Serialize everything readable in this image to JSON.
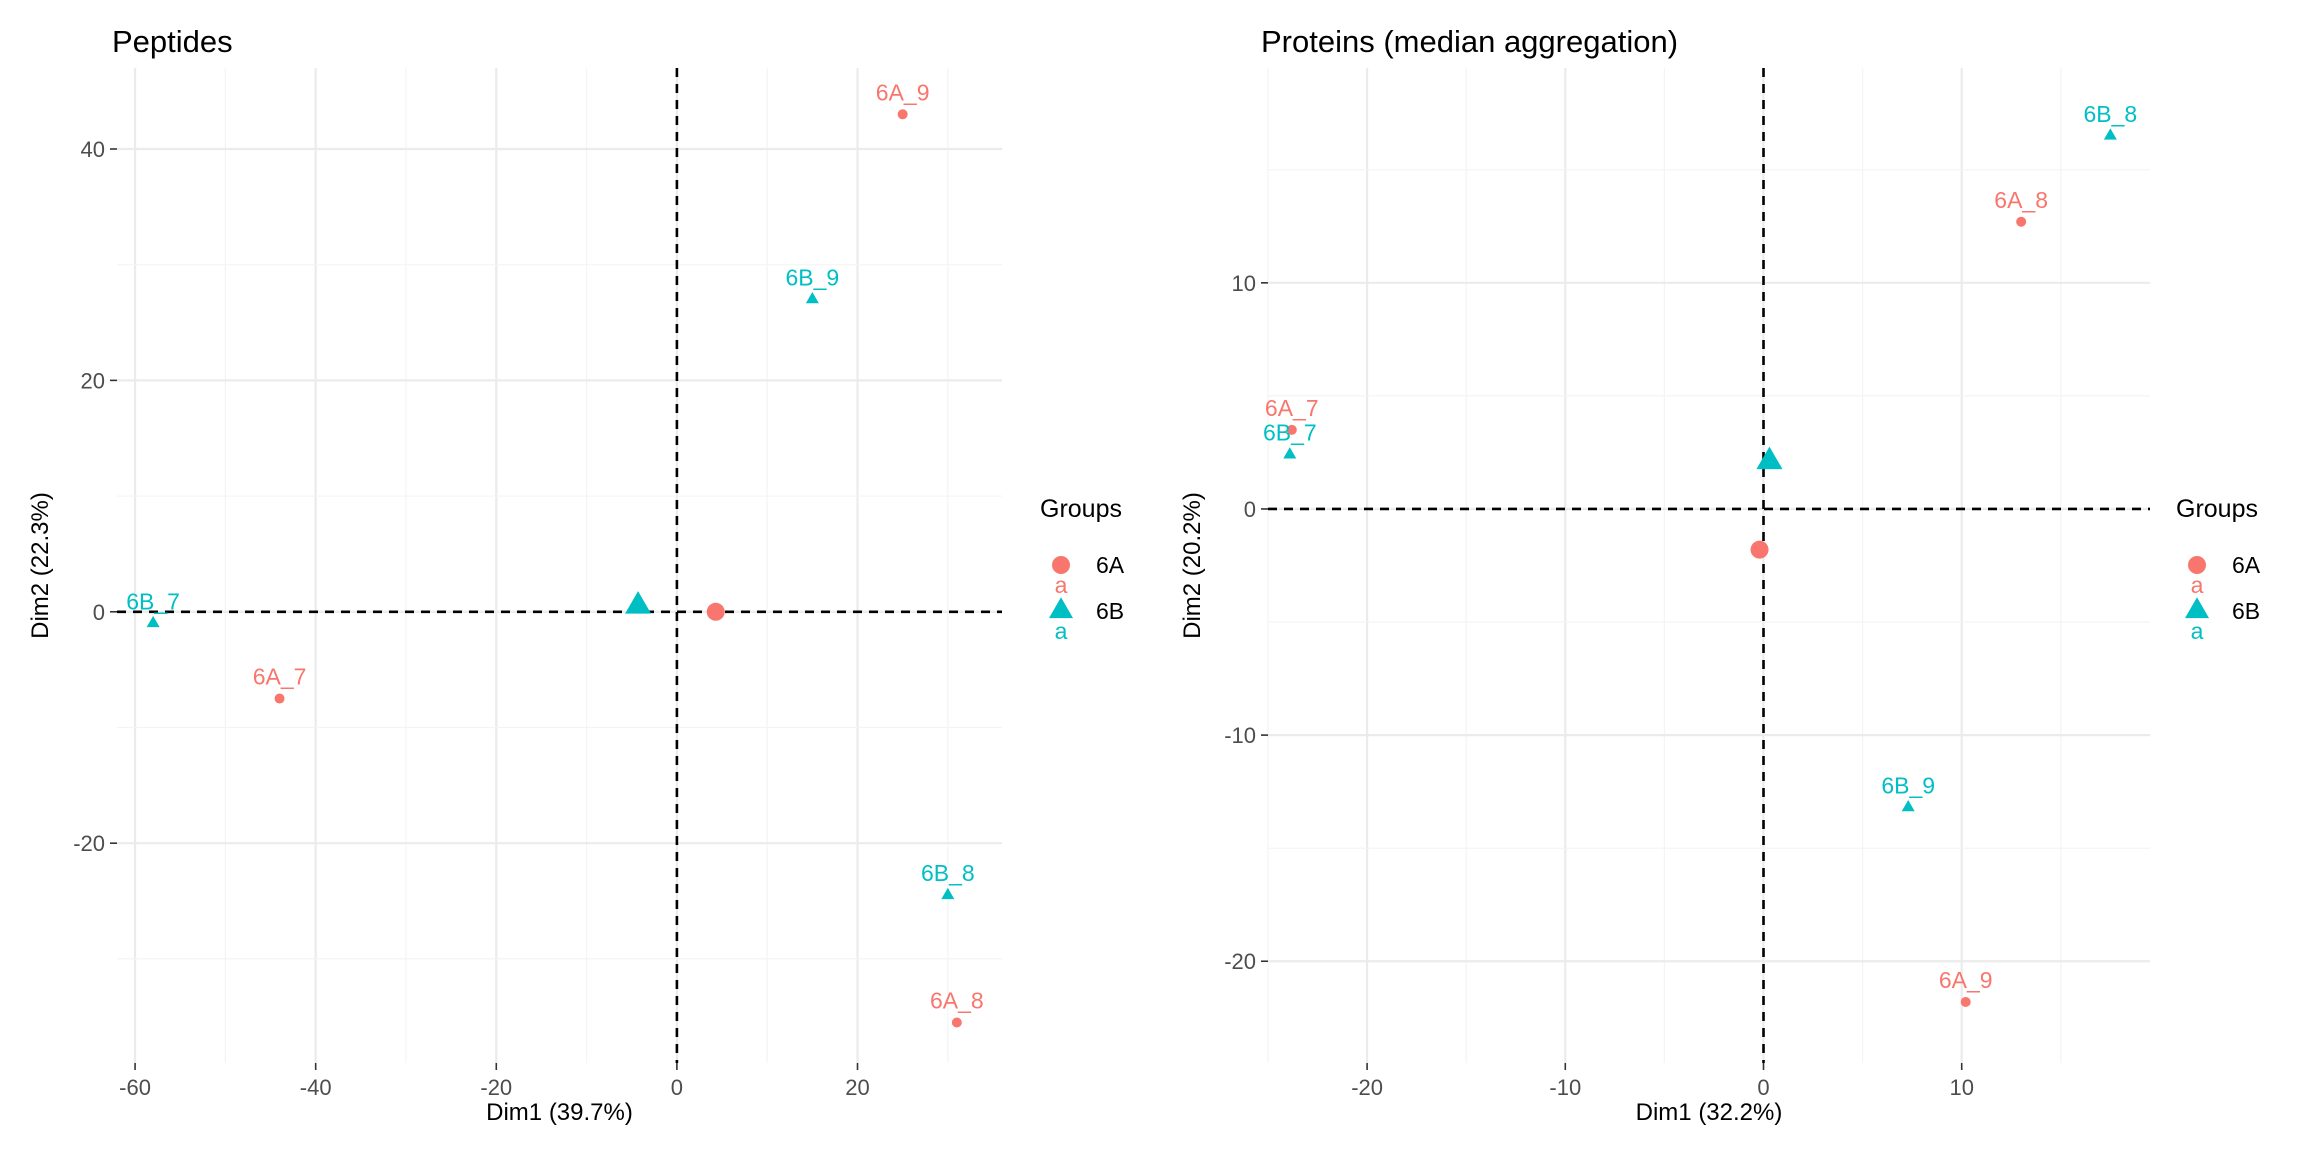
{
  "colors": {
    "6A": "#F8766D",
    "6B": "#00BFC4",
    "grid_major": "#ebebeb",
    "grid_minor": "#f4f4f4",
    "ref_line": "#000000"
  },
  "chart_data": [
    {
      "type": "scatter",
      "title": "Peptides",
      "xlabel": "Dim1 (39.7%)",
      "ylabel": "Dim2 (22.3%)",
      "xlim": [
        -62,
        36
      ],
      "ylim": [
        -39,
        47
      ],
      "xticks": [
        -60,
        -40,
        -20,
        0,
        20
      ],
      "yticks": [
        -20,
        0,
        20,
        40
      ],
      "reference_lines": {
        "x": 0,
        "y": 0,
        "style": "dashed"
      },
      "legend": {
        "title": "Groups",
        "placement": "right",
        "entries": [
          {
            "name": "6A",
            "shape": "circle",
            "glyph": "a"
          },
          {
            "name": "6B",
            "shape": "triangle",
            "glyph": "a"
          }
        ]
      },
      "points": [
        {
          "label": "6A_9",
          "group": "6A",
          "x": 25,
          "y": 43
        },
        {
          "label": "6B_9",
          "group": "6B",
          "x": 15,
          "y": 27
        },
        {
          "label": "6B_7",
          "group": "6B",
          "x": -58,
          "y": -1
        },
        {
          "label": "6A_7",
          "group": "6A",
          "x": -44,
          "y": -7.5
        },
        {
          "label": "6B_8",
          "group": "6B",
          "x": 30,
          "y": -24.5
        },
        {
          "label": "6A_8",
          "group": "6A",
          "x": 31,
          "y": -35.5
        }
      ],
      "centroids": [
        {
          "group": "6A",
          "x": 4.3,
          "y": 0
        },
        {
          "group": "6B",
          "x": -4.3,
          "y": 0.5
        }
      ]
    },
    {
      "type": "scatter",
      "title": "Proteins (median aggregation)",
      "xlabel": "Dim1 (32.2%)",
      "ylabel": "Dim2 (20.2%)",
      "xlim": [
        -25,
        19.5
      ],
      "ylim": [
        -24.5,
        19.5
      ],
      "xticks": [
        -20,
        -10,
        0,
        10
      ],
      "yticks": [
        -20,
        -10,
        0,
        10
      ],
      "reference_lines": {
        "x": 0,
        "y": 0,
        "style": "dashed"
      },
      "legend": {
        "title": "Groups",
        "placement": "right",
        "entries": [
          {
            "name": "6A",
            "shape": "circle",
            "glyph": "a"
          },
          {
            "name": "6B",
            "shape": "triangle",
            "glyph": "a"
          }
        ]
      },
      "points": [
        {
          "label": "6B_8",
          "group": "6B",
          "x": 17.5,
          "y": 16.5
        },
        {
          "label": "6A_8",
          "group": "6A",
          "x": 13,
          "y": 12.7
        },
        {
          "label": "6A_7",
          "group": "6A",
          "x": -23.8,
          "y": 3.5
        },
        {
          "label": "6B_7",
          "group": "6B",
          "x": -23.9,
          "y": 2.4
        },
        {
          "label": "6B_9",
          "group": "6B",
          "x": 7.3,
          "y": -13.2
        },
        {
          "label": "6A_9",
          "group": "6A",
          "x": 10.2,
          "y": -21.8
        }
      ],
      "centroids": [
        {
          "group": "6A",
          "x": -0.2,
          "y": -1.8
        },
        {
          "group": "6B",
          "x": 0.3,
          "y": 2.1
        }
      ]
    }
  ]
}
